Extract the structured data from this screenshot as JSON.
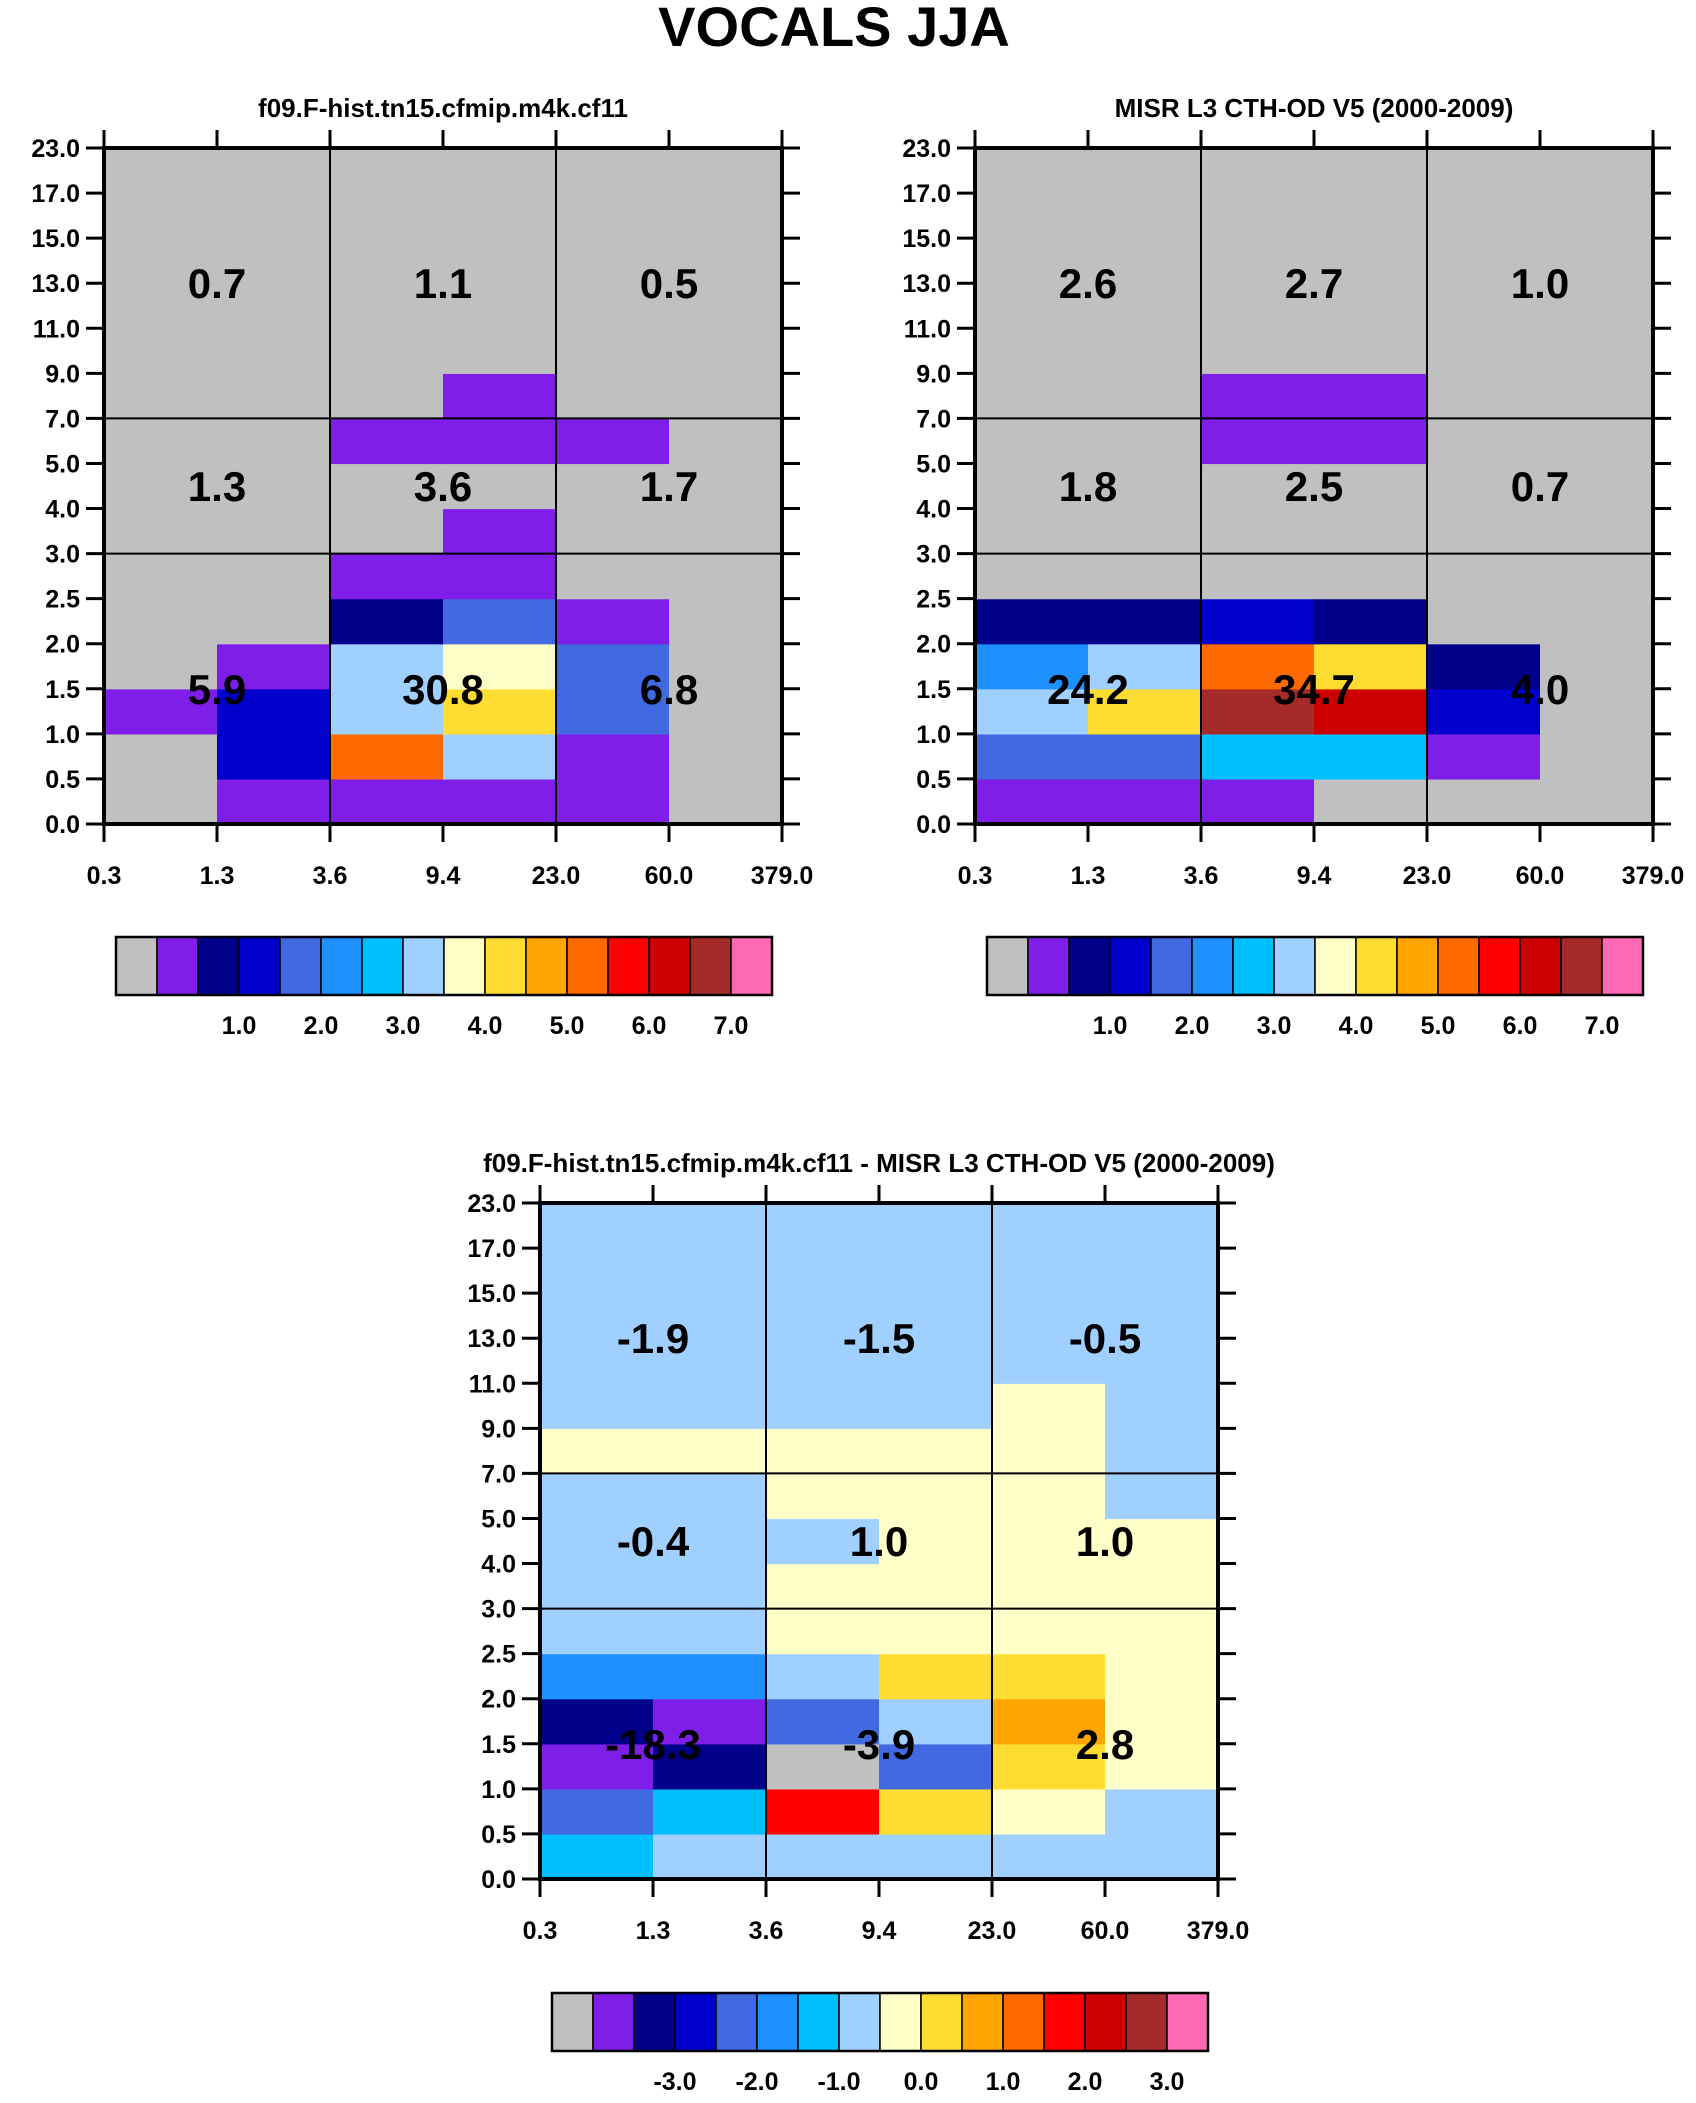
{
  "figure_title": "VOCALS JJA",
  "palette": [
    "#c0c0c0",
    "#7e1ee8",
    "#00008b",
    "#0000cd",
    "#4169e1",
    "#1e90ff",
    "#00bfff",
    "#a0d0ff",
    "#ffffc8",
    "#ffdc32",
    "#ffa500",
    "#ff6a00",
    "#ff0000",
    "#cd0000",
    "#a52a2a",
    "#ff69b4"
  ],
  "chart_data": [
    {
      "type": "heatmap",
      "name": "model",
      "title": "f09.F-hist.tn15.cfmip.m4k.cf11",
      "x_ticks": [
        "0.3",
        "1.3",
        "3.6",
        "9.4",
        "23.0",
        "60.0",
        "379.0"
      ],
      "y_ticks": [
        "0.0",
        "0.5",
        "1.0",
        "1.5",
        "2.0",
        "2.5",
        "3.0",
        "4.0",
        "5.0",
        "7.0",
        "9.0",
        "11.0",
        "13.0",
        "15.0",
        "17.0",
        "23.0"
      ],
      "grid": [
        [
          0,
          1,
          1,
          1,
          1,
          0
        ],
        [
          0,
          3,
          11,
          7,
          1,
          0
        ],
        [
          1,
          3,
          7,
          9,
          4,
          0
        ],
        [
          0,
          1,
          7,
          8,
          4,
          0
        ],
        [
          0,
          0,
          2,
          4,
          1,
          0
        ],
        [
          0,
          0,
          1,
          1,
          0,
          0
        ],
        [
          0,
          0,
          0,
          1,
          0,
          0
        ],
        [
          0,
          0,
          0,
          0,
          0,
          0
        ],
        [
          0,
          0,
          1,
          1,
          1,
          0
        ],
        [
          0,
          0,
          0,
          1,
          0,
          0
        ],
        [
          0,
          0,
          0,
          0,
          0,
          0
        ],
        [
          0,
          0,
          0,
          0,
          0,
          0
        ],
        [
          0,
          0,
          0,
          0,
          0,
          0
        ],
        [
          0,
          0,
          0,
          0,
          0,
          0
        ],
        [
          0,
          0,
          0,
          0,
          0,
          0
        ]
      ],
      "annotations": [
        [
          "5.9",
          "30.8",
          "6.8"
        ],
        [
          "1.3",
          "3.6",
          "1.7"
        ],
        [
          "0.7",
          "1.1",
          "0.5"
        ]
      ],
      "colorbar_labels": [
        "1.0",
        "2.0",
        "3.0",
        "4.0",
        "5.0",
        "6.0",
        "7.0"
      ]
    },
    {
      "type": "heatmap",
      "name": "obs",
      "title": "MISR L3 CTH-OD V5 (2000-2009)",
      "x_ticks": [
        "0.3",
        "1.3",
        "3.6",
        "9.4",
        "23.0",
        "60.0",
        "379.0"
      ],
      "y_ticks": [
        "0.0",
        "0.5",
        "1.0",
        "1.5",
        "2.0",
        "2.5",
        "3.0",
        "4.0",
        "5.0",
        "7.0",
        "9.0",
        "11.0",
        "13.0",
        "15.0",
        "17.0",
        "23.0"
      ],
      "grid": [
        [
          1,
          1,
          1,
          0,
          0,
          0
        ],
        [
          4,
          4,
          6,
          6,
          1,
          0
        ],
        [
          7,
          9,
          14,
          13,
          3,
          0
        ],
        [
          5,
          7,
          11,
          9,
          2,
          0
        ],
        [
          2,
          2,
          3,
          2,
          0,
          0
        ],
        [
          0,
          0,
          0,
          0,
          0,
          0
        ],
        [
          0,
          0,
          0,
          0,
          0,
          0
        ],
        [
          0,
          0,
          0,
          0,
          0,
          0
        ],
        [
          0,
          0,
          1,
          1,
          0,
          0
        ],
        [
          0,
          0,
          1,
          1,
          0,
          0
        ],
        [
          0,
          0,
          0,
          0,
          0,
          0
        ],
        [
          0,
          0,
          0,
          0,
          0,
          0
        ],
        [
          0,
          0,
          0,
          0,
          0,
          0
        ],
        [
          0,
          0,
          0,
          0,
          0,
          0
        ],
        [
          0,
          0,
          0,
          0,
          0,
          0
        ]
      ],
      "annotations": [
        [
          "24.2",
          "34.7",
          "4.0"
        ],
        [
          "1.8",
          "2.5",
          "0.7"
        ],
        [
          "2.6",
          "2.7",
          "1.0"
        ]
      ],
      "colorbar_labels": [
        "1.0",
        "2.0",
        "3.0",
        "4.0",
        "5.0",
        "6.0",
        "7.0"
      ]
    },
    {
      "type": "heatmap",
      "name": "diff",
      "title": "f09.F-hist.tn15.cfmip.m4k.cf11 - MISR L3 CTH-OD V5 (2000-2009)",
      "x_ticks": [
        "0.3",
        "1.3",
        "3.6",
        "9.4",
        "23.0",
        "60.0",
        "379.0"
      ],
      "y_ticks": [
        "0.0",
        "0.5",
        "1.0",
        "1.5",
        "2.0",
        "2.5",
        "3.0",
        "4.0",
        "5.0",
        "7.0",
        "9.0",
        "11.0",
        "13.0",
        "15.0",
        "17.0",
        "23.0"
      ],
      "grid": [
        [
          6,
          7,
          7,
          7,
          7,
          7
        ],
        [
          4,
          6,
          12,
          9,
          8,
          7
        ],
        [
          1,
          2,
          0,
          4,
          9,
          8
        ],
        [
          2,
          1,
          4,
          7,
          10,
          8
        ],
        [
          5,
          5,
          7,
          9,
          9,
          8
        ],
        [
          7,
          7,
          8,
          8,
          8,
          8
        ],
        [
          7,
          7,
          8,
          8,
          8,
          8
        ],
        [
          7,
          7,
          7,
          8,
          8,
          8
        ],
        [
          7,
          7,
          8,
          8,
          8,
          7
        ],
        [
          8,
          8,
          8,
          8,
          8,
          7
        ],
        [
          7,
          7,
          7,
          7,
          8,
          7
        ],
        [
          7,
          7,
          7,
          7,
          7,
          7
        ],
        [
          7,
          7,
          7,
          7,
          7,
          7
        ],
        [
          7,
          7,
          7,
          7,
          7,
          7
        ],
        [
          7,
          7,
          7,
          7,
          7,
          7
        ]
      ],
      "annotations": [
        [
          "-18.3",
          "-3.9",
          "2.8"
        ],
        [
          "-0.4",
          "1.0",
          "1.0"
        ],
        [
          "-1.9",
          "-1.5",
          "-0.5"
        ]
      ],
      "colorbar_labels": [
        "-3.0",
        "-2.0",
        "-1.0",
        "0.0",
        "1.0",
        "2.0",
        "3.0"
      ]
    }
  ]
}
